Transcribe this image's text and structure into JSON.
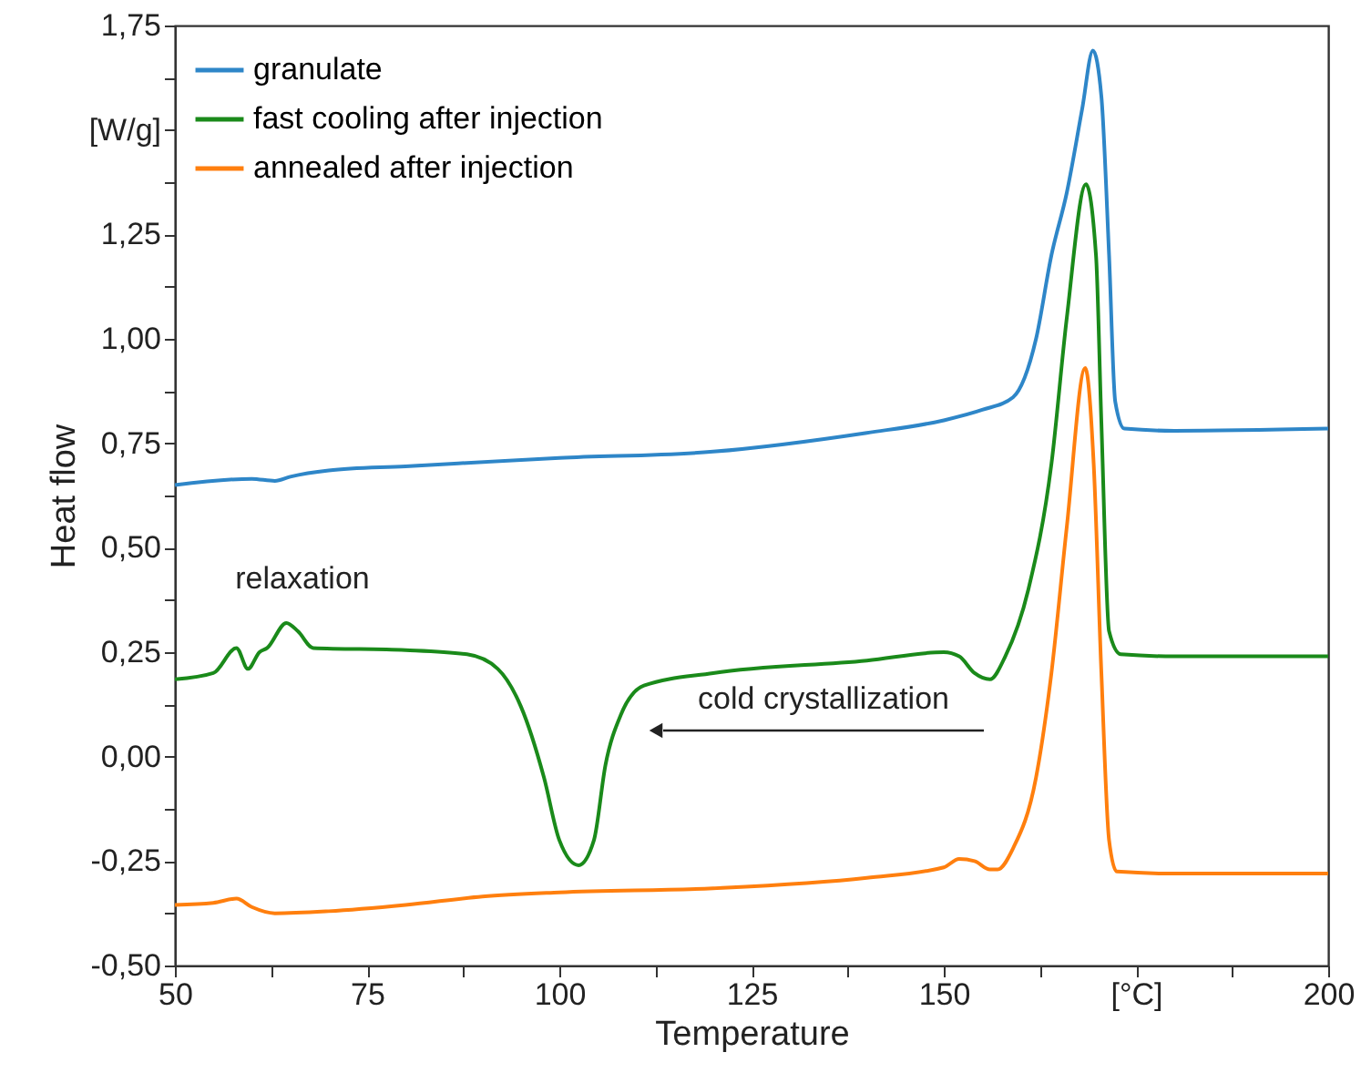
{
  "chart_data": {
    "type": "line",
    "xlabel": "Temperature",
    "ylabel": "Heat flow",
    "xlim": [
      50,
      200
    ],
    "ylim": [
      -0.5,
      1.75
    ],
    "xticks": [
      50,
      {
        "value": 62.5,
        "label": null
      },
      75,
      {
        "value": 87.5,
        "label": null
      },
      100,
      {
        "value": 112.5,
        "label": null
      },
      125,
      {
        "value": 137.5,
        "label": null
      },
      150,
      {
        "value": 162.5,
        "label": null
      },
      {
        "value": 175,
        "label": "[°C]"
      },
      {
        "value": 187.5,
        "label": null
      },
      200
    ],
    "yticks": [
      {
        "value": -0.5,
        "label": "-0,50"
      },
      {
        "value": -0.375,
        "label": null
      },
      {
        "value": -0.25,
        "label": "-0,25"
      },
      {
        "value": -0.125,
        "label": null
      },
      {
        "value": 0,
        "label": "0,00"
      },
      {
        "value": 0.125,
        "label": null
      },
      {
        "value": 0.25,
        "label": "0,25"
      },
      {
        "value": 0.375,
        "label": null
      },
      {
        "value": 0.5,
        "label": "0,50"
      },
      {
        "value": 0.625,
        "label": null
      },
      {
        "value": 0.75,
        "label": "0,75"
      },
      {
        "value": 0.875,
        "label": null
      },
      {
        "value": 1.0,
        "label": "1,00"
      },
      {
        "value": 1.125,
        "label": null
      },
      {
        "value": 1.25,
        "label": "1,25"
      },
      {
        "value": 1.375,
        "label": null
      },
      {
        "value": 1.5,
        "label": "[W/g]"
      },
      {
        "value": 1.625,
        "label": null
      },
      {
        "value": 1.75,
        "label": "1,75"
      }
    ],
    "grid": false,
    "legend": "top left",
    "marker": "none",
    "line_style": "solid",
    "annotations": [
      "relaxation",
      "cold crystallization"
    ],
    "series": [
      {
        "name": "granulate",
        "color": "#2e86c8",
        "x": [
          50,
          60,
          63,
          65,
          70,
          80,
          100,
          120,
          140,
          150,
          155,
          159,
          162,
          164,
          166,
          168,
          169.4,
          170.5,
          171.5,
          172.3,
          173.5,
          180,
          200
        ],
        "values": [
          0.65,
          0.665,
          0.66,
          0.67,
          0.685,
          0.695,
          0.715,
          0.73,
          0.775,
          0.805,
          0.83,
          0.86,
          1.0,
          1.2,
          1.35,
          1.55,
          1.69,
          1.58,
          1.2,
          0.85,
          0.785,
          0.78,
          0.785
        ]
      },
      {
        "name": "fast cooling after injection",
        "color": "#1a8a1a",
        "x": [
          50,
          55,
          58,
          59.5,
          61,
          62,
          64.5,
          66,
          68,
          80,
          88,
          92,
          95,
          98,
          100,
          102.5,
          104.5,
          106,
          108,
          111,
          120,
          140,
          150,
          152,
          154,
          156,
          158,
          161,
          164,
          166,
          168.5,
          169.8,
          170.5,
          171.5,
          173,
          180,
          200
        ],
        "values": [
          0.185,
          0.2,
          0.26,
          0.21,
          0.25,
          0.26,
          0.32,
          0.3,
          0.26,
          0.255,
          0.245,
          0.21,
          0.12,
          -0.05,
          -0.2,
          -0.26,
          -0.2,
          -0.02,
          0.1,
          0.17,
          0.2,
          0.23,
          0.25,
          0.24,
          0.2,
          0.185,
          0.24,
          0.4,
          0.7,
          1.05,
          1.37,
          1.2,
          0.8,
          0.3,
          0.245,
          0.24,
          0.24
        ]
      },
      {
        "name": "annealed after injection",
        "color": "#ff7f0e",
        "x": [
          50,
          55,
          58,
          60,
          63,
          70,
          80,
          90,
          100,
          120,
          140,
          150,
          152,
          154,
          156,
          157,
          159,
          162,
          164,
          166,
          168.4,
          169.5,
          170.5,
          171.5,
          172.5,
          180,
          200
        ],
        "values": [
          -0.355,
          -0.35,
          -0.34,
          -0.36,
          -0.375,
          -0.37,
          -0.355,
          -0.335,
          -0.325,
          -0.315,
          -0.29,
          -0.265,
          -0.245,
          -0.25,
          -0.27,
          -0.27,
          -0.22,
          -0.05,
          0.2,
          0.55,
          0.93,
          0.7,
          0.2,
          -0.2,
          -0.275,
          -0.28,
          -0.28
        ]
      }
    ]
  }
}
